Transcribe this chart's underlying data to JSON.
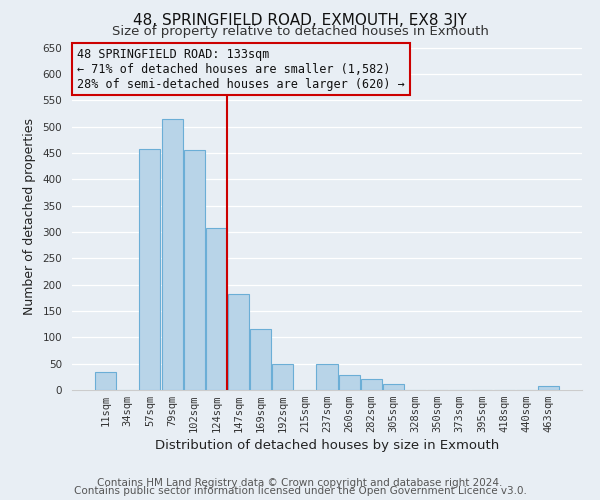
{
  "title": "48, SPRINGFIELD ROAD, EXMOUTH, EX8 3JY",
  "subtitle": "Size of property relative to detached houses in Exmouth",
  "xlabel": "Distribution of detached houses by size in Exmouth",
  "ylabel": "Number of detached properties",
  "footer_line1": "Contains HM Land Registry data © Crown copyright and database right 2024.",
  "footer_line2": "Contains public sector information licensed under the Open Government Licence v3.0.",
  "bar_labels": [
    "11sqm",
    "34sqm",
    "57sqm",
    "79sqm",
    "102sqm",
    "124sqm",
    "147sqm",
    "169sqm",
    "192sqm",
    "215sqm",
    "237sqm",
    "260sqm",
    "282sqm",
    "305sqm",
    "328sqm",
    "350sqm",
    "373sqm",
    "395sqm",
    "418sqm",
    "440sqm",
    "463sqm"
  ],
  "bar_values": [
    35,
    0,
    458,
    515,
    456,
    307,
    182,
    115,
    50,
    0,
    50,
    28,
    20,
    12,
    0,
    0,
    0,
    0,
    0,
    0,
    8
  ],
  "bar_color": "#b8d4e8",
  "bar_edge_color": "#6baed6",
  "vline_x_index": 5.5,
  "vline_color": "#cc0000",
  "ylim": [
    0,
    660
  ],
  "yticks": [
    0,
    50,
    100,
    150,
    200,
    250,
    300,
    350,
    400,
    450,
    500,
    550,
    600,
    650
  ],
  "ann_line1": "48 SPRINGFIELD ROAD: 133sqm",
  "ann_line2": "← 71% of detached houses are smaller (1,582)",
  "ann_line3": "28% of semi-detached houses are larger (620) →",
  "ann_box_color": "#cc0000",
  "background_color": "#e8eef4",
  "plot_bg_color": "#e8eef4",
  "title_fontsize": 11,
  "subtitle_fontsize": 9.5,
  "xlabel_fontsize": 9.5,
  "ylabel_fontsize": 9,
  "tick_fontsize": 7.5,
  "ann_fontsize": 8.5,
  "footer_fontsize": 7.5,
  "grid_color": "#ffffff",
  "spine_color": "#cccccc"
}
